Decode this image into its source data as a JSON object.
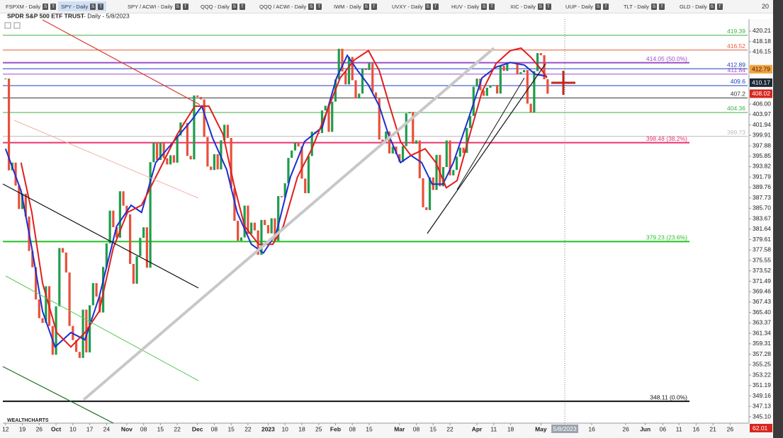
{
  "tabs": [
    {
      "label": "FSPXM - Daily"
    },
    {
      "label": "SPY - Daily"
    },
    {
      "label": "SPY / ACWI - Daily"
    },
    {
      "label": "QQQ - Daily"
    },
    {
      "label": "QQQ / ACWI - Daily"
    },
    {
      "label": "IWM - Daily"
    },
    {
      "label": "UVXY - Daily"
    },
    {
      "label": "HUV - Daily"
    },
    {
      "label": "XIC - Daily"
    },
    {
      "label": "UUP - Daily"
    },
    {
      "label": "TLT - Daily"
    },
    {
      "label": "GLD - Daily"
    }
  ],
  "tab_buttons": [
    "S",
    "T"
  ],
  "zoom": "20",
  "logo": "WEALTHCHARTS",
  "corner_value": "62.01",
  "chart_data": {
    "type": "candlestick",
    "title": "SPDR S&P 500 ETF TRUST",
    "subtitle": "- Daily - 5/8/2023",
    "crosshair_date": "5/8/2023",
    "up_color": "#1f9d4c",
    "down_color": "#e8503a",
    "values": [
      410.97,
      393.1,
      394.6,
      390.12,
      385.56,
      388.55,
      384.09,
      377.39,
      374.22,
      367.95,
      364.31,
      363.38,
      370.53,
      362.79,
      357.18,
      366.61,
      377.97,
      377.09,
      373.2,
      362.79,
      360.02,
      357.74,
      356.56,
      365.97,
      357.63,
      366.82,
      371.13,
      368.5,
      365.41,
      374.29,
      378.87,
      385.25,
      382.02,
      379.98,
      389.02,
      386.21,
      384.52,
      374.87,
      371.01,
      376.35,
      379.95,
      382.0,
      374.13,
      394.69,
      398.51,
      395.12,
      398.49,
      395.45,
      394.24,
      396.03,
      394.59,
      399.9,
      402.42,
      402.33,
      395.91,
      395.23,
      407.68,
      407.38,
      406.91,
      399.59,
      393.83,
      393.16,
      396.24,
      393.28,
      398.95,
      401.97,
      399.4,
      389.63,
      383.27,
      379.39,
      380.02,
      386.23,
      380.72,
      382.91,
      381.4,
      376.66,
      383.44,
      382.43,
      380.82,
      383.76,
      379.38,
      388.08,
      387.86,
      390.58,
      395.52,
      396.96,
      398.5,
      397.77,
      391.49,
      388.64,
      395.88,
      400.63,
      400.2,
      400.35,
      404.75,
      405.68,
      400.59,
      406.48,
      410.8,
      416.78,
      412.35,
      409.83,
      415.19,
      410.65,
      407.09,
      408.04,
      412.83,
      412.64,
      413.98,
      408.28,
      407.26,
      399.09,
      398.54,
      400.66,
      396.38,
      397.73,
      396.26,
      394.74,
      397.81,
      404.19,
      404.47,
      398.27,
      398.92,
      391.56,
      385.91,
      385.36,
      391.73,
      389.28,
      396.11,
      389.99,
      393.74,
      398.91,
      392.11,
      393.17,
      395.75,
      397.52,
      396.49,
      401.35,
      403.7,
      409.39,
      410.95,
      408.67,
      407.6,
      409.19,
      409.61,
      409.72,
      408.05,
      413.47,
      412.46,
      413.94,
      414.21,
      414.14,
      411.88,
      412.2,
      412.63,
      406.08,
      404.36,
      412.41,
      415.93,
      415.51,
      410.84,
      408.02
    ],
    "series": [
      {
        "color": "#1a2fd1",
        "x": [
          0,
          4.6,
          7.8,
          11,
          14.7,
          19.4,
          23.6,
          27.8,
          33,
          37.3,
          40.4,
          44.6,
          49.9,
          55.2,
          58.3,
          61.5,
          65.7,
          68.8,
          73,
          76.6,
          80.4,
          84.6,
          88.8,
          94.1,
          98.3,
          101.5,
          104.6,
          107.8,
          111,
          113.7,
          117.3,
          120.4,
          123.6,
          126.7,
          129.9,
          133,
          137.3,
          141.5,
          145.7,
          149.9,
          154.1,
          157.3,
          160.8
        ],
        "values": [
          397.3,
          389.1,
          378,
          365.6,
          358.7,
          361.5,
          360.1,
          368.4,
          382.2,
          386.3,
          384.9,
          394.6,
          398.7,
          402.8,
          405.6,
          399.4,
          393.2,
          384.9,
          378.7,
          377,
          380.8,
          391.8,
          398.7,
          401.5,
          411.1,
          415.5,
          412.5,
          409.7,
          405.6,
          400.1,
          394.6,
          396,
          394.6,
          390.4,
          390.4,
          394.6,
          402.8,
          411.1,
          413.2,
          414.1,
          413.6,
          411.8,
          411.4
        ]
      },
      {
        "color": "#e01e1e",
        "x": [
          4.6,
          7.8,
          11,
          15.2,
          19.4,
          23.6,
          27.8,
          32,
          36.2,
          40.4,
          45.7,
          51,
          56.2,
          60.4,
          64.6,
          67.8,
          71,
          75.2,
          79.4,
          82.5,
          86.7,
          91,
          95.2,
          99.4,
          103.6,
          107.8,
          111,
          114.1,
          117.3,
          120.4,
          124.6,
          127.8,
          130.9,
          134.1,
          137.3,
          141.5,
          145.7,
          149.9,
          153.1,
          156.2,
          159.4,
          160.8
        ],
        "values": [
          394.6,
          384.9,
          371.1,
          361.5,
          358.7,
          361.5,
          365.6,
          378,
          384.9,
          386.3,
          393.2,
          400.1,
          405.6,
          405.6,
          400.1,
          390.4,
          382.2,
          378.7,
          378.7,
          382.2,
          391.8,
          397.3,
          404.2,
          411.1,
          414.6,
          416.4,
          412.5,
          405.6,
          398.7,
          396,
          397.3,
          394.6,
          389.7,
          391.1,
          398.7,
          408.4,
          413.9,
          416.4,
          416.9,
          415,
          412.5,
          411.1
        ]
      }
    ],
    "xlim": [
      -0.8,
      220.8
    ],
    "xticks": [
      {
        "value": 0,
        "label": "12"
      },
      {
        "value": 5,
        "label": "19"
      },
      {
        "value": 10,
        "label": "26"
      },
      {
        "value": 15,
        "label": "Oct"
      },
      {
        "value": 20,
        "label": "10"
      },
      {
        "value": 25,
        "label": "17"
      },
      {
        "value": 30,
        "label": "24"
      },
      {
        "value": 36,
        "label": "Nov"
      },
      {
        "value": 41,
        "label": "08"
      },
      {
        "value": 46,
        "label": "15"
      },
      {
        "value": 51,
        "label": "22"
      },
      {
        "value": 57,
        "label": "Dec"
      },
      {
        "value": 62,
        "label": "08"
      },
      {
        "value": 67,
        "label": "15"
      },
      {
        "value": 72,
        "label": "22"
      },
      {
        "value": 78,
        "label": "2023"
      },
      {
        "value": 83,
        "label": "10"
      },
      {
        "value": 88,
        "label": "18"
      },
      {
        "value": 93,
        "label": "25"
      },
      {
        "value": 98,
        "label": "Feb"
      },
      {
        "value": 103,
        "label": "08"
      },
      {
        "value": 108,
        "label": "15"
      },
      {
        "value": 117,
        "label": "Mar"
      },
      {
        "value": 122,
        "label": "08"
      },
      {
        "value": 127,
        "label": "15"
      },
      {
        "value": 132,
        "label": "22"
      },
      {
        "value": 140,
        "label": "Apr"
      },
      {
        "value": 145,
        "label": "11"
      },
      {
        "value": 150,
        "label": "18"
      },
      {
        "value": 159,
        "label": "May"
      },
      {
        "value": 174.1,
        "label": "16"
      },
      {
        "value": 184.2,
        "label": "26"
      },
      {
        "value": 190,
        "label": "Jun"
      },
      {
        "value": 195.2,
        "label": "06"
      },
      {
        "value": 200,
        "label": "11"
      },
      {
        "value": 205.1,
        "label": "16"
      },
      {
        "value": 210.1,
        "label": "21"
      },
      {
        "value": 215.2,
        "label": "26"
      }
    ],
    "crosshair_x": 166.1,
    "ylim": [
      343.86,
      422.55
    ],
    "yticks": [
      420.21,
      418.18,
      416.15,
      {
        "value": 406,
        "label": "406.00"
      },
      403.97,
      401.94,
      399.91,
      397.88,
      395.85,
      393.82,
      391.79,
      389.76,
      387.73,
      {
        "value": 385.7,
        "label": "385.70"
      },
      383.67,
      381.64,
      379.61,
      377.58,
      375.55,
      373.52,
      371.49,
      369.46,
      367.43,
      {
        "value": 365.4,
        "label": "365.40"
      },
      363.37,
      361.34,
      359.31,
      357.28,
      355.25,
      353.22,
      351.19,
      349.16,
      347.13,
      {
        "value": 345.1,
        "label": "345.10"
      }
    ],
    "levels": [
      {
        "value": 419.39,
        "color": "#3cb043"
      },
      {
        "value": 416.52,
        "color": "#e85a3c"
      },
      {
        "value": 414.05,
        "label": "414.05 (50.0%)",
        "color": "#9b4dca"
      },
      {
        "value": 412.89,
        "color": "#1f3fbf"
      },
      {
        "value": 411.84,
        "color": "#9b4dca"
      },
      {
        "value": 409.6,
        "color": "#1f3fbf"
      },
      {
        "value": 407.2,
        "color": "#333333"
      },
      {
        "value": 404.36,
        "color": "#3cb043"
      },
      {
        "value": 399.73,
        "color": "#bbbbbb"
      },
      {
        "value": 398.48,
        "label": "398.48 (38.2%)",
        "color": "#e8336b"
      },
      {
        "value": 379.23,
        "label": "379.23 (23.6%)",
        "color": "#22c022"
      },
      {
        "value": 348.11,
        "label": "348.11 (0.0%)",
        "color": "#111111"
      }
    ],
    "price_badges": [
      {
        "value": 412.79,
        "color": "#f5a13a"
      },
      {
        "value": 410.17,
        "color": "#1b2733"
      },
      {
        "value": 408.02,
        "color": "#d8261f"
      }
    ]
  }
}
